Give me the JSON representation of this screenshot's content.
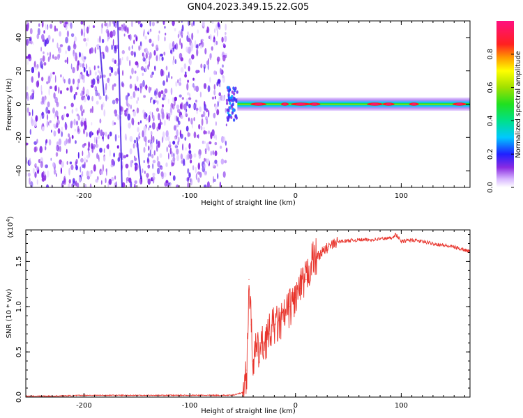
{
  "title": "GN04.2023.349.15.22.G05",
  "colors": {
    "snr_line": "#e8342c",
    "frame": "#000000"
  },
  "chart_data": [
    {
      "type": "heatmap",
      "title": "GN04.2023.349.15.22.G05",
      "xlabel": "Height of straight line (km)",
      "ylabel": "Frequency (Hz)",
      "xlim": [
        -255,
        165
      ],
      "ylim": [
        -50,
        50
      ],
      "xticks": [
        -200,
        -100,
        0,
        100
      ],
      "xtick_labels": [
        "-200",
        "-100",
        "0",
        "100"
      ],
      "yticks": [
        -40,
        -20,
        0,
        20,
        40
      ],
      "ytick_labels": [
        "-40",
        "-20",
        "0",
        "20",
        "40"
      ],
      "colorbar": {
        "label": "Normalized spectral amplitude",
        "range": [
          0.0,
          1.0
        ],
        "ticks": [
          0.0,
          0.2,
          0.4,
          0.6,
          0.8
        ],
        "tick_labels": [
          "0.0",
          "0.2",
          "0.4",
          "0.6",
          "0.8"
        ],
        "colormap": "rainbow (violet to red to magenta)"
      },
      "regions": [
        {
          "x_range": [
            -255,
            -65
          ],
          "frequency_range": [
            -50,
            50
          ],
          "amplitude": "low (0.0-0.2), broadband noise"
        },
        {
          "x_range": [
            -65,
            -55
          ],
          "frequency_range": [
            -10,
            10
          ],
          "amplitude": "transition, up to 0.5"
        },
        {
          "x_range": [
            -55,
            165
          ],
          "frequency_range": [
            -4,
            4
          ],
          "peak_frequency": 0,
          "amplitude": "narrow tone near 0 Hz, peaks 0.8-1.0"
        }
      ],
      "grid": false
    },
    {
      "type": "line",
      "xlabel": "Height of straight line (km)",
      "ylabel": "SNR (10 * v/v)",
      "y_multiplier_label": "(x10^4)",
      "xlim": [
        -255,
        165
      ],
      "ylim": [
        0,
        1.85
      ],
      "xticks": [
        -200,
        -100,
        0,
        100
      ],
      "xtick_labels": [
        "-200",
        "-100",
        "0",
        "100"
      ],
      "yticks": [
        0.0,
        0.5,
        1.0,
        1.5
      ],
      "ytick_labels": [
        "0.0",
        "0.5",
        "1.0",
        "1.5"
      ],
      "series": [
        {
          "x": [
            -255,
            -230,
            -200,
            -150,
            -100,
            -60,
            -50,
            -46,
            -44,
            -42,
            -40,
            -38,
            -35,
            -30,
            -25,
            -20,
            -15,
            -10,
            -5,
            0,
            5,
            10,
            15,
            20,
            25,
            30,
            40,
            50,
            60,
            70,
            80,
            90,
            95,
            100,
            110,
            120,
            130,
            140,
            150,
            160,
            165
          ],
          "y": [
            0.01,
            0.01,
            0.02,
            0.02,
            0.02,
            0.02,
            0.05,
            0.3,
            1.3,
            0.8,
            0.4,
            0.5,
            0.5,
            0.6,
            0.7,
            0.8,
            0.8,
            0.9,
            1.0,
            1.1,
            1.2,
            1.3,
            1.5,
            1.55,
            1.6,
            1.65,
            1.72,
            1.73,
            1.74,
            1.74,
            1.75,
            1.76,
            1.8,
            1.72,
            1.74,
            1.72,
            1.7,
            1.68,
            1.66,
            1.63,
            1.61
          ]
        }
      ],
      "grid": false
    }
  ]
}
